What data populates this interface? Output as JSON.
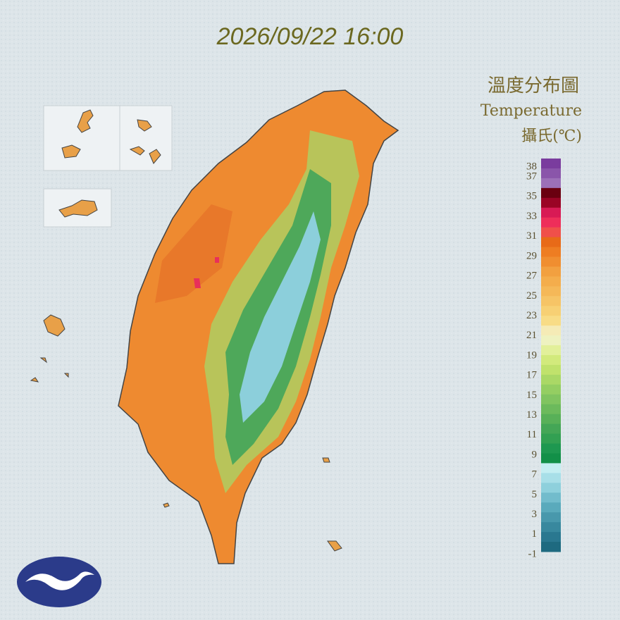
{
  "header": {
    "timestamp": "2026/09/22 16:00"
  },
  "legend": {
    "title_zh": "溫度分布圖",
    "title_en": "Temperature",
    "unit": "攝氏(℃)",
    "ticks": [
      38,
      37,
      35,
      33,
      31,
      29,
      27,
      25,
      23,
      21,
      19,
      17,
      15,
      13,
      11,
      9,
      7,
      5,
      3,
      1,
      -1
    ],
    "colors": [
      "#7a3c9e",
      "#8a55aa",
      "#9c70b8",
      "#6a0010",
      "#9a0425",
      "#d81a55",
      "#ee2e5a",
      "#f0504a",
      "#e86a18",
      "#ee7d22",
      "#f08e30",
      "#f2a040",
      "#f4ad4c",
      "#f5b858",
      "#f6c466",
      "#f7d074",
      "#f8dc86",
      "#f5ebb6",
      "#eef2c0",
      "#e2f09a",
      "#d2ea7c",
      "#c0e26c",
      "#aad866",
      "#94ce62",
      "#80c460",
      "#6cba5c",
      "#58b058",
      "#44a656",
      "#32a052",
      "#1e9850",
      "#129048",
      "#c4eef2",
      "#a8dfe8",
      "#8ed0dc",
      "#72bccc",
      "#5aaabc",
      "#4898ac",
      "#38889e",
      "#2a7890",
      "#1e6a80"
    ]
  }
}
